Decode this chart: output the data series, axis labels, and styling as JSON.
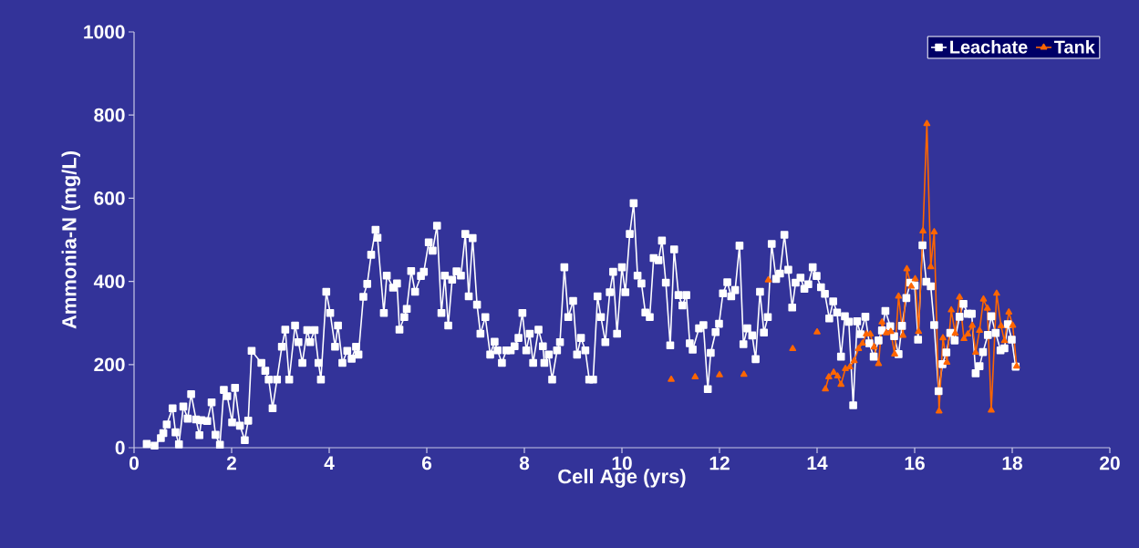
{
  "chart_data": {
    "type": "line",
    "xlabel": "Cell Age (yrs)",
    "ylabel": "Ammonia-N (mg/L)",
    "xlim": [
      0,
      20
    ],
    "xticks": [
      0,
      2,
      4,
      6,
      8,
      10,
      12,
      14,
      16,
      18,
      20
    ],
    "ylim": [
      0,
      1000
    ],
    "yticks": [
      0,
      200,
      400,
      600,
      800,
      1000
    ],
    "grid": false,
    "legend": "top right",
    "line_style": "solid",
    "series": [
      {
        "name": "Leachate",
        "color": "#ffffff",
        "marker": "square",
        "x": [
          0.26,
          0.42,
          0.55,
          0.6,
          0.67,
          0.79,
          0.85,
          0.92,
          1.01,
          1.1,
          1.17,
          1.27,
          1.34,
          1.38,
          1.5,
          1.59,
          1.67,
          1.76,
          1.84,
          1.91,
          2.01,
          2.07,
          2.17,
          2.27,
          2.34,
          2.41,
          2.61,
          2.69,
          2.76,
          2.84,
          2.93,
          3.03,
          3.1,
          3.18,
          3.3,
          3.37,
          3.45,
          3.55,
          3.61,
          3.7,
          3.78,
          3.83,
          3.94,
          4.02,
          4.12,
          4.18,
          4.27,
          4.37,
          4.46,
          4.55,
          4.6,
          4.7,
          4.78,
          4.86,
          4.95,
          4.99,
          5.12,
          5.18,
          5.31,
          5.39,
          5.44,
          5.54,
          5.59,
          5.68,
          5.76,
          5.88,
          5.94,
          6.04,
          6.12,
          6.21,
          6.3,
          6.37,
          6.44,
          6.52,
          6.61,
          6.7,
          6.79,
          6.86,
          6.94,
          7.03,
          7.1,
          7.2,
          7.3,
          7.39,
          7.45,
          7.54,
          7.63,
          7.72,
          7.8,
          7.88,
          7.96,
          8.04,
          8.11,
          8.18,
          8.29,
          8.38,
          8.41,
          8.5,
          8.57,
          8.67,
          8.73,
          8.82,
          8.9,
          9.0,
          9.08,
          9.16,
          9.25,
          9.33,
          9.41,
          9.5,
          9.57,
          9.66,
          9.75,
          9.82,
          9.9,
          10.0,
          10.07,
          10.16,
          10.24,
          10.32,
          10.4,
          10.48,
          10.57,
          10.65,
          10.75,
          10.82,
          10.9,
          10.99,
          11.07,
          11.16,
          11.24,
          11.32,
          11.39,
          11.45,
          11.58,
          11.67,
          11.76,
          11.82,
          11.92,
          11.99,
          12.07,
          12.16,
          12.24,
          12.32,
          12.41,
          12.49,
          12.57,
          12.67,
          12.74,
          12.83,
          12.91,
          12.99,
          13.07,
          13.16,
          13.24,
          13.33,
          13.41,
          13.49,
          13.56,
          13.66,
          13.74,
          13.82,
          13.91,
          13.99,
          14.08,
          14.16,
          14.25,
          14.33,
          14.41,
          14.49,
          14.57,
          14.65,
          14.74,
          14.82,
          14.89,
          14.99,
          15.07,
          15.16,
          15.26,
          15.33,
          15.4,
          15.5,
          15.58,
          15.67,
          15.74,
          15.83,
          15.91,
          16.0,
          16.07,
          16.16,
          16.24,
          16.33,
          16.4,
          16.49,
          16.57,
          16.65,
          16.73,
          16.82,
          16.92,
          17.0,
          17.09,
          17.17,
          17.25,
          17.33,
          17.4,
          17.5,
          17.57,
          17.66,
          17.76,
          17.84,
          17.91,
          17.99,
          18.07
        ],
        "values": [
          9,
          5,
          23,
          35,
          56,
          95,
          37,
          8,
          99,
          70,
          129,
          68,
          30,
          66,
          64,
          109,
          31,
          7,
          139,
          124,
          61,
          144,
          53,
          18,
          65,
          233,
          204,
          185,
          164,
          95,
          164,
          243,
          284,
          164,
          294,
          254,
          204,
          283,
          254,
          283,
          204,
          164,
          375,
          324,
          243,
          294,
          204,
          233,
          214,
          243,
          224,
          363,
          394,
          464,
          524,
          505,
          324,
          414,
          385,
          395,
          284,
          314,
          334,
          425,
          375,
          413,
          423,
          494,
          474,
          534,
          324,
          414,
          294,
          404,
          424,
          414,
          514,
          364,
          504,
          344,
          274,
          314,
          224,
          255,
          234,
          204,
          234,
          234,
          244,
          264,
          324,
          234,
          274,
          204,
          284,
          244,
          204,
          224,
          164,
          234,
          254,
          434,
          314,
          353,
          224,
          264,
          234,
          164,
          164,
          364,
          314,
          254,
          374,
          423,
          274,
          434,
          374,
          514,
          588,
          414,
          395,
          325,
          314,
          456,
          451,
          498,
          397,
          246,
          477,
          367,
          342,
          367,
          251,
          236,
          287,
          295,
          141,
          228,
          278,
          298,
          371,
          398,
          364,
          379,
          486,
          249,
          287,
          270,
          213,
          375,
          277,
          314,
          490,
          406,
          419,
          512,
          428,
          337,
          397,
          409,
          382,
          393,
          434,
          413,
          386,
          370,
          311,
          352,
          325,
          219,
          316,
          303,
          102,
          304,
          273,
          315,
          251,
          219,
          258,
          282,
          329,
          292,
          268,
          225,
          293,
          360,
          397,
          390,
          260,
          487,
          399,
          388,
          295,
          136,
          201,
          229,
          276,
          258,
          315,
          346,
          322,
          322,
          179,
          196,
          230,
          271,
          316,
          276,
          234,
          239,
          297,
          260,
          195
        ]
      },
      {
        "name": "Tank",
        "color": "#ff6600",
        "marker": "triangle",
        "x": [
          11.01,
          11.25,
          11.5,
          11.75,
          12.0,
          12.25,
          12.5,
          12.75,
          13.0,
          13.25,
          13.5,
          13.75,
          14.0,
          14.08,
          14.17,
          14.24,
          14.34,
          14.42,
          14.49,
          14.58,
          14.67,
          14.76,
          14.85,
          14.93,
          15.01,
          15.09,
          15.17,
          15.26,
          15.33,
          15.42,
          15.51,
          15.59,
          15.67,
          15.76,
          15.84,
          15.93,
          16.01,
          16.08,
          16.17,
          16.25,
          16.33,
          16.4,
          16.5,
          16.58,
          16.66,
          16.75,
          16.83,
          16.92,
          17.01,
          17.09,
          17.18,
          17.25,
          17.33,
          17.41,
          17.49,
          17.57,
          17.68,
          17.77,
          17.84,
          17.93,
          18.01,
          18.09
        ],
        "values": [
          164,
          null,
          170,
          null,
          175,
          null,
          176,
          null,
          403,
          null,
          238,
          null,
          278,
          null,
          141,
          170,
          181,
          172,
          152,
          190,
          194,
          209,
          238,
          251,
          273,
          273,
          242,
          202,
          302,
          276,
          279,
          225,
          364,
          270,
          430,
          388,
          406,
          279,
          521,
          779,
          435,
          519,
          88,
          264,
          205,
          331,
          275,
          362,
          262,
          273,
          294,
          229,
          282,
          357,
          335,
          90,
          371,
          293,
          257,
          326,
          294,
          196
        ]
      }
    ]
  }
}
